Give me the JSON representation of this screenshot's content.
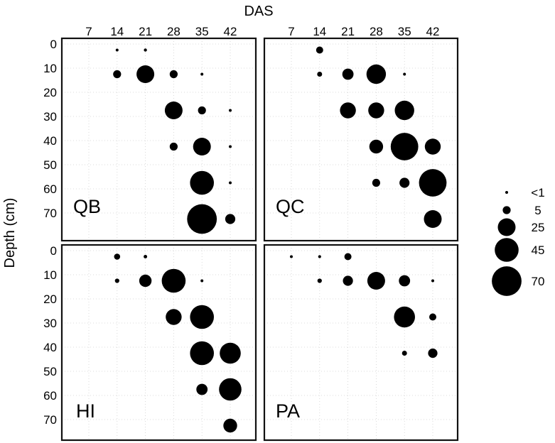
{
  "chart_data": {
    "type": "scatter",
    "subtype": "bubble",
    "xlabel": "DAS",
    "ylabel": "Depth (cm)",
    "x_ticks": [
      7,
      14,
      21,
      28,
      35,
      42
    ],
    "y_ticks": [
      0,
      10,
      20,
      30,
      40,
      50,
      60,
      70
    ],
    "y_inverted": true,
    "grid": true,
    "legend_position": "right",
    "legend": {
      "entries": [
        {
          "label": "<1",
          "size": 0.5
        },
        {
          "label": "5",
          "size": 5
        },
        {
          "label": "25",
          "size": 25
        },
        {
          "label": "45",
          "size": 45
        },
        {
          "label": "70",
          "size": 70
        }
      ]
    },
    "panels": [
      {
        "label": "QB",
        "points": [
          {
            "das": 14,
            "depth": 2.5,
            "size": 0.5
          },
          {
            "das": 21,
            "depth": 2.5,
            "size": 0.8
          },
          {
            "das": 14,
            "depth": 12.5,
            "size": 5
          },
          {
            "das": 21,
            "depth": 12.5,
            "size": 25
          },
          {
            "das": 28,
            "depth": 12.5,
            "size": 5
          },
          {
            "das": 35,
            "depth": 12.5,
            "size": 0.5
          },
          {
            "das": 28,
            "depth": 27.5,
            "size": 25
          },
          {
            "das": 35,
            "depth": 27.5,
            "size": 5
          },
          {
            "das": 42,
            "depth": 27.5,
            "size": 0.4
          },
          {
            "das": 28,
            "depth": 42.5,
            "size": 5
          },
          {
            "das": 35,
            "depth": 42.5,
            "size": 25
          },
          {
            "das": 42,
            "depth": 42.5,
            "size": 0.4
          },
          {
            "das": 35,
            "depth": 57.5,
            "size": 45
          },
          {
            "das": 42,
            "depth": 57.5,
            "size": 0.4
          },
          {
            "das": 35,
            "depth": 72.5,
            "size": 70
          },
          {
            "das": 42,
            "depth": 72.5,
            "size": 8
          }
        ]
      },
      {
        "label": "QC",
        "points": [
          {
            "das": 14,
            "depth": 2.5,
            "size": 4
          },
          {
            "das": 14,
            "depth": 12.5,
            "size": 2
          },
          {
            "das": 21,
            "depth": 12.5,
            "size": 10
          },
          {
            "das": 28,
            "depth": 12.5,
            "size": 30
          },
          {
            "das": 35,
            "depth": 12.5,
            "size": 0.5
          },
          {
            "das": 21,
            "depth": 27.5,
            "size": 20
          },
          {
            "das": 28,
            "depth": 27.5,
            "size": 20
          },
          {
            "das": 35,
            "depth": 27.5,
            "size": 30
          },
          {
            "das": 28,
            "depth": 42.5,
            "size": 15
          },
          {
            "das": 35,
            "depth": 42.5,
            "size": 60
          },
          {
            "das": 42,
            "depth": 42.5,
            "size": 20
          },
          {
            "das": 28,
            "depth": 57.5,
            "size": 5
          },
          {
            "das": 35,
            "depth": 57.5,
            "size": 8
          },
          {
            "das": 42,
            "depth": 57.5,
            "size": 60
          },
          {
            "das": 42,
            "depth": 72.5,
            "size": 25
          }
        ]
      },
      {
        "label": "HI",
        "points": [
          {
            "das": 14,
            "depth": 2.5,
            "size": 3
          },
          {
            "das": 21,
            "depth": 2.5,
            "size": 1
          },
          {
            "das": 14,
            "depth": 12.5,
            "size": 1.5
          },
          {
            "das": 21,
            "depth": 12.5,
            "size": 12
          },
          {
            "das": 28,
            "depth": 12.5,
            "size": 45
          },
          {
            "das": 35,
            "depth": 12.5,
            "size": 0.5
          },
          {
            "das": 28,
            "depth": 27.5,
            "size": 20
          },
          {
            "das": 35,
            "depth": 27.5,
            "size": 45
          },
          {
            "das": 35,
            "depth": 42.5,
            "size": 45
          },
          {
            "das": 42,
            "depth": 42.5,
            "size": 35
          },
          {
            "das": 35,
            "depth": 57.5,
            "size": 10
          },
          {
            "das": 42,
            "depth": 57.5,
            "size": 40
          },
          {
            "das": 42,
            "depth": 72.5,
            "size": 15
          }
        ]
      },
      {
        "label": "PA",
        "points": [
          {
            "das": 7,
            "depth": 2.5,
            "size": 0.5
          },
          {
            "das": 14,
            "depth": 2.5,
            "size": 0.7
          },
          {
            "das": 21,
            "depth": 2.5,
            "size": 4
          },
          {
            "das": 14,
            "depth": 12.5,
            "size": 1.5
          },
          {
            "das": 21,
            "depth": 12.5,
            "size": 8
          },
          {
            "das": 28,
            "depth": 12.5,
            "size": 25
          },
          {
            "das": 35,
            "depth": 12.5,
            "size": 10
          },
          {
            "das": 42,
            "depth": 12.5,
            "size": 0.4
          },
          {
            "das": 35,
            "depth": 27.5,
            "size": 35
          },
          {
            "das": 42,
            "depth": 27.5,
            "size": 4
          },
          {
            "das": 35,
            "depth": 42.5,
            "size": 2
          },
          {
            "das": 42,
            "depth": 42.5,
            "size": 7
          }
        ]
      }
    ]
  }
}
